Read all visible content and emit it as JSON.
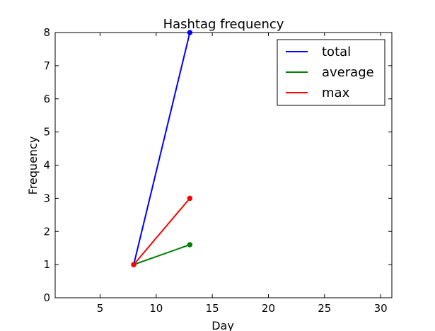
{
  "chart_data": {
    "type": "line",
    "title": "Hashtag frequency",
    "xlabel": "Day",
    "ylabel": "Frequency",
    "xlim": [
      1,
      31
    ],
    "ylim": [
      0,
      8
    ],
    "xticks": [
      5,
      10,
      15,
      20,
      25,
      30
    ],
    "yticks": [
      0,
      1,
      2,
      3,
      4,
      5,
      6,
      7,
      8
    ],
    "grid": false,
    "legend_position": "top-right",
    "series": [
      {
        "name": "total",
        "color": "#0000ff",
        "x": [
          8,
          13
        ],
        "y": [
          1,
          8
        ]
      },
      {
        "name": "average",
        "color": "#008000",
        "x": [
          8,
          13
        ],
        "y": [
          1,
          1.6
        ]
      },
      {
        "name": "max",
        "color": "#ff0000",
        "x": [
          8,
          13
        ],
        "y": [
          1,
          3
        ]
      }
    ]
  }
}
